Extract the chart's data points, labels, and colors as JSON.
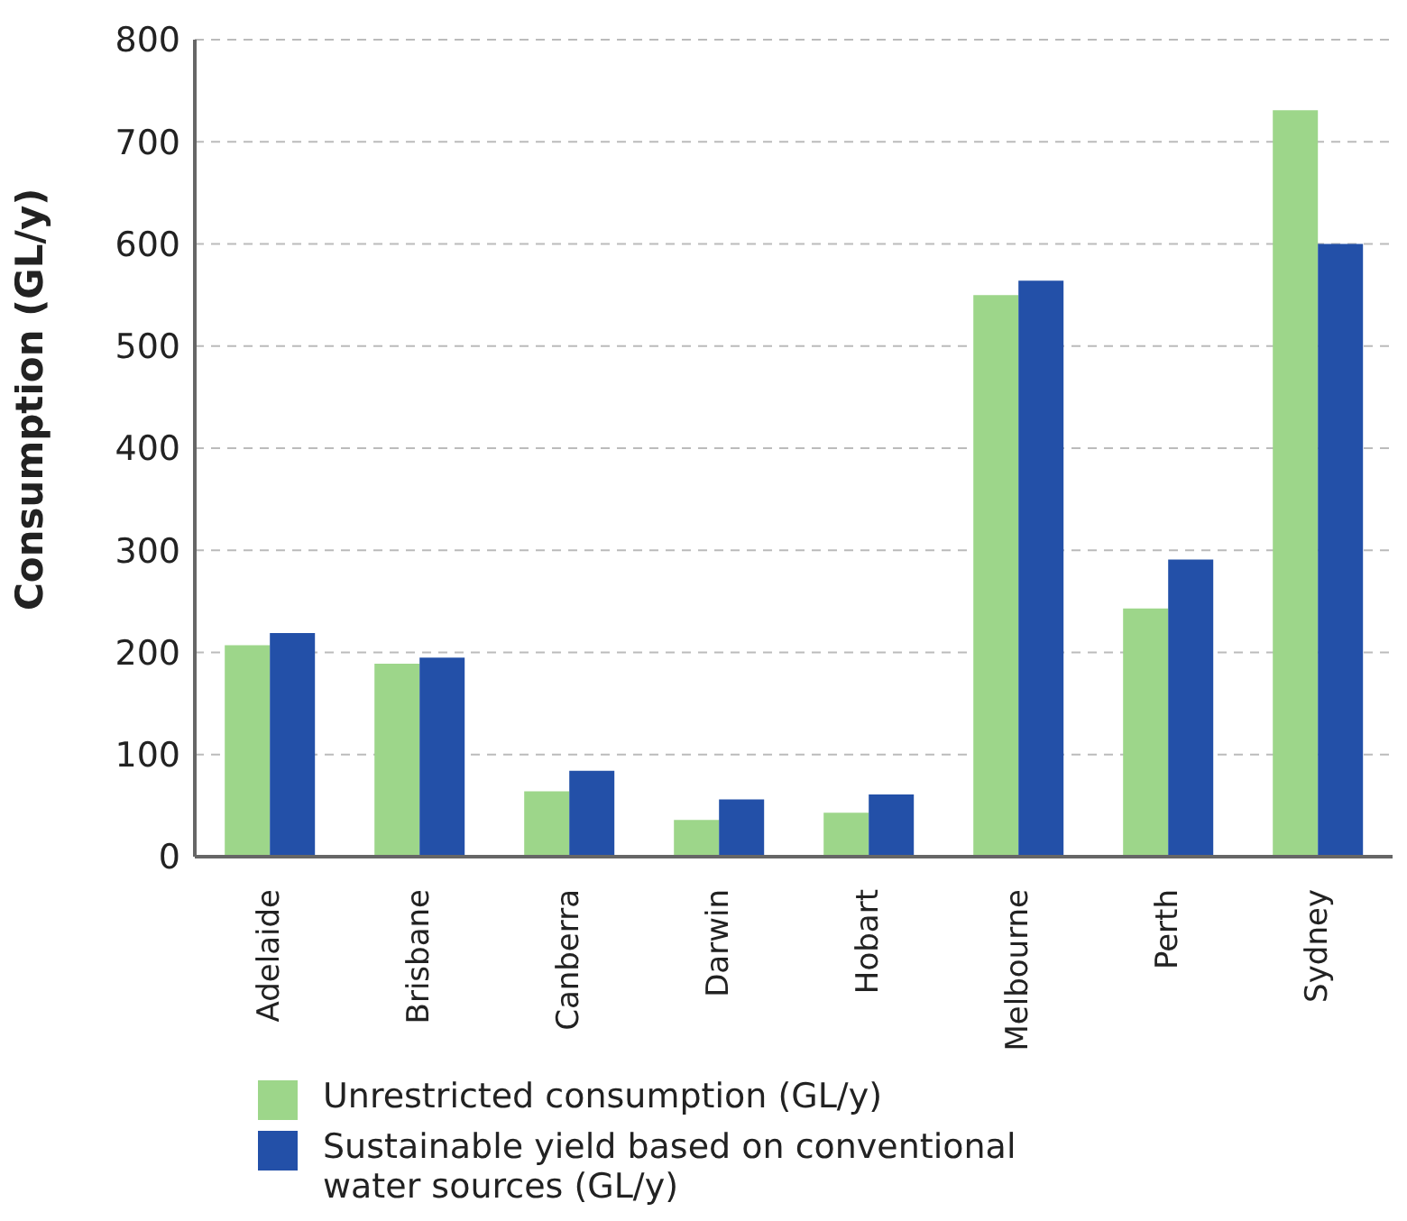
{
  "chart_data": {
    "type": "bar",
    "ylabel": "Consumption (GL/y)",
    "categories": [
      "Adelaide",
      "Brisbane",
      "Canberra",
      "Darwin",
      "Hobart",
      "Melbourne",
      "Perth",
      "Sydney"
    ],
    "series": [
      {
        "name": "Unrestricted consumption (GL/y)",
        "color": "#9dd68a",
        "values": [
          207,
          189,
          64,
          36,
          43,
          550,
          243,
          731
        ]
      },
      {
        "name": "Sustainable yield based on conventional water sources (GL/y)",
        "color": "#2350a8",
        "values": [
          219,
          195,
          84,
          56,
          61,
          564,
          291,
          600
        ]
      }
    ],
    "ylim": [
      0,
      800
    ],
    "yticks": [
      0,
      100,
      200,
      300,
      400,
      500,
      600,
      700,
      800
    ],
    "grid": "y",
    "legend": "bottom left"
  }
}
